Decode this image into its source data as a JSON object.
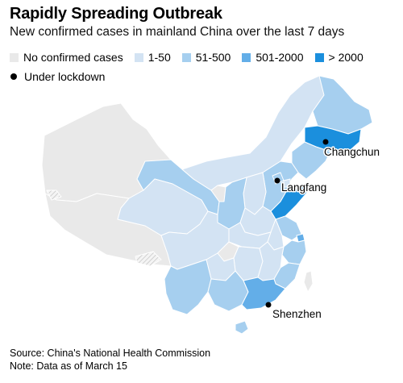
{
  "title": "Rapidly Spreading Outbreak",
  "subtitle": "New confirmed cases in mainland China over the last 7 days",
  "legend": [
    {
      "label": "No confirmed cases",
      "color": "#e9e9e9"
    },
    {
      "label": "1-50",
      "color": "#d3e3f3"
    },
    {
      "label": "51-500",
      "color": "#a6cfef"
    },
    {
      "label": "501-2000",
      "color": "#63aee8"
    },
    {
      "label": "> 2000",
      "color": "#1b8fdd"
    }
  ],
  "lockdown_label": "Under lockdown",
  "cities": [
    {
      "name": "Changchun"
    },
    {
      "name": "Langfang"
    },
    {
      "name": "Shenzhen"
    }
  ],
  "footer": {
    "source": "Source: China's National Health Commission",
    "note": "Note: Data as of March 15"
  }
}
